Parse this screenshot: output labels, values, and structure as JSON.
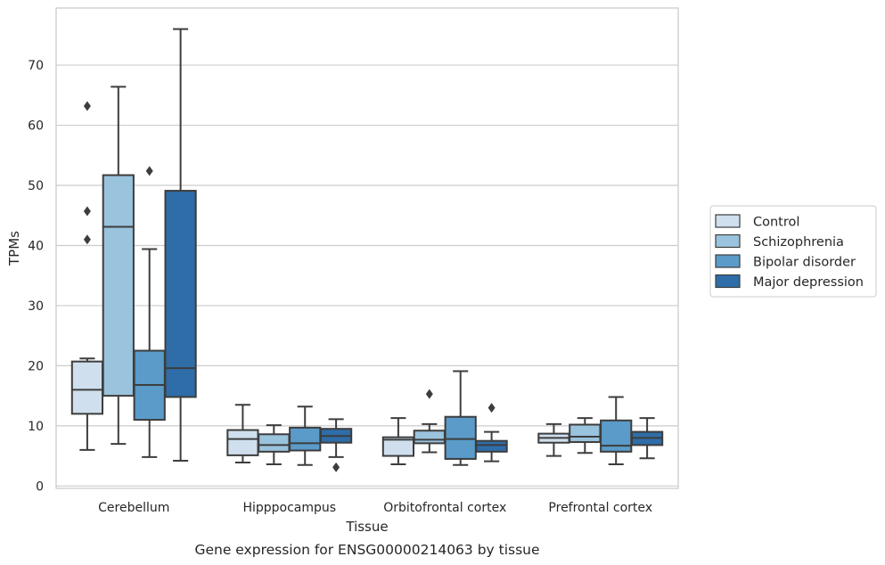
{
  "chart_data": {
    "type": "box",
    "caption": "Gene expression for ENSG00000214063 by tissue",
    "xlabel": "Tissue",
    "ylabel": "TPMs",
    "ylim": [
      -0.4,
      79.5
    ],
    "yticks": [
      0,
      10,
      20,
      30,
      40,
      50,
      60,
      70
    ],
    "grid": "horizontal",
    "legend_position": "right",
    "categories": [
      "Cerebellum",
      "Hipppocampus",
      "Orbitofrontal cortex",
      "Prefrontal cortex"
    ],
    "series": [
      {
        "name": "Control",
        "color": "#cfdfee",
        "boxes": [
          {
            "whislo": 6.0,
            "q1": 12.0,
            "med": 16.0,
            "q3": 20.7,
            "whishi": 21.2,
            "fliers": [
              63.2,
              45.7,
              41.0
            ]
          },
          {
            "whislo": 3.9,
            "q1": 5.1,
            "med": 7.8,
            "q3": 9.3,
            "whishi": 13.5,
            "fliers": []
          },
          {
            "whislo": 3.6,
            "q1": 5.0,
            "med": 7.7,
            "q3": 8.1,
            "whishi": 11.3,
            "fliers": []
          },
          {
            "whislo": 5.0,
            "q1": 7.2,
            "med": 8.0,
            "q3": 8.7,
            "whishi": 10.3,
            "fliers": []
          }
        ]
      },
      {
        "name": "Schizophrenia",
        "color": "#9ac3dd",
        "boxes": [
          {
            "whislo": 7.0,
            "q1": 15.0,
            "med": 43.1,
            "q3": 51.7,
            "whishi": 66.4,
            "fliers": []
          },
          {
            "whislo": 3.6,
            "q1": 5.7,
            "med": 6.8,
            "q3": 8.6,
            "whishi": 10.1,
            "fliers": []
          },
          {
            "whislo": 5.6,
            "q1": 7.1,
            "med": 7.7,
            "q3": 9.2,
            "whishi": 10.3,
            "fliers": [
              15.3
            ]
          },
          {
            "whislo": 5.5,
            "q1": 7.3,
            "med": 8.2,
            "q3": 10.2,
            "whishi": 11.3,
            "fliers": []
          }
        ]
      },
      {
        "name": "Bipolar disorder",
        "color": "#5a9bc9",
        "boxes": [
          {
            "whislo": 4.8,
            "q1": 11.0,
            "med": 16.8,
            "q3": 22.5,
            "whishi": 39.4,
            "fliers": [
              52.4
            ]
          },
          {
            "whislo": 3.5,
            "q1": 5.9,
            "med": 7.1,
            "q3": 9.7,
            "whishi": 13.2,
            "fliers": []
          },
          {
            "whislo": 3.5,
            "q1": 4.5,
            "med": 7.8,
            "q3": 11.5,
            "whishi": 19.1,
            "fliers": []
          },
          {
            "whislo": 3.6,
            "q1": 5.7,
            "med": 6.7,
            "q3": 10.9,
            "whishi": 14.8,
            "fliers": []
          }
        ]
      },
      {
        "name": "Major depression",
        "color": "#2e6da8",
        "boxes": [
          {
            "whislo": 4.2,
            "q1": 14.8,
            "med": 19.6,
            "q3": 49.1,
            "whishi": 76.0,
            "fliers": []
          },
          {
            "whislo": 4.8,
            "q1": 7.2,
            "med": 8.3,
            "q3": 9.5,
            "whishi": 11.1,
            "fliers": [
              3.1
            ]
          },
          {
            "whislo": 4.1,
            "q1": 5.7,
            "med": 6.8,
            "q3": 7.5,
            "whishi": 9.0,
            "fliers": [
              13.0
            ]
          },
          {
            "whislo": 4.6,
            "q1": 6.8,
            "med": 8.0,
            "q3": 9.0,
            "whishi": 11.3,
            "fliers": []
          }
        ]
      }
    ]
  }
}
